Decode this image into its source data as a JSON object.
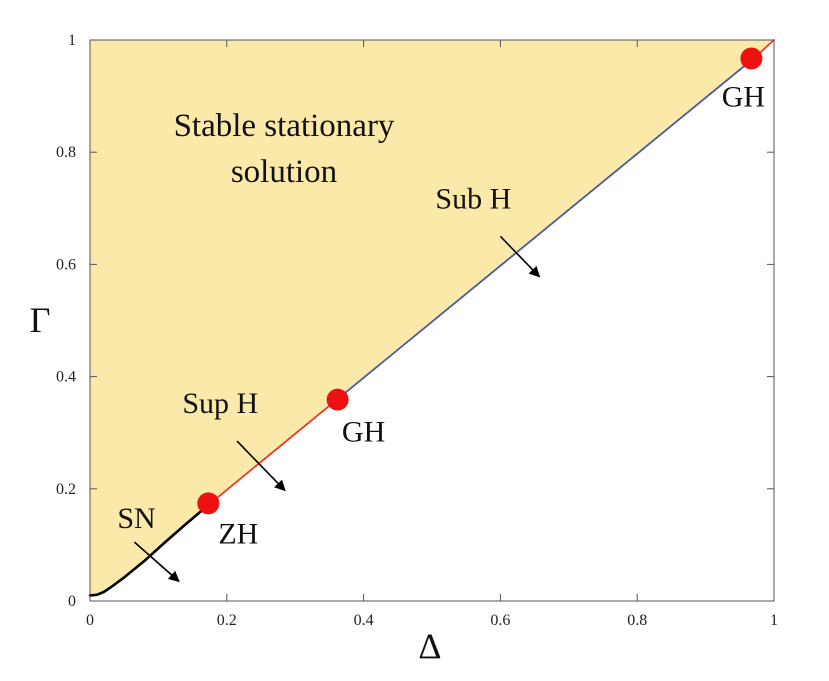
{
  "chart_data": {
    "type": "line",
    "xlabel": "Δ",
    "ylabel": "Γ",
    "xlim": [
      0,
      1
    ],
    "ylim": [
      0,
      1
    ],
    "xticks": [
      "0",
      "0.2",
      "0.4",
      "0.6",
      "0.8",
      "1"
    ],
    "yticks": [
      "0",
      "0.2",
      "0.4",
      "0.6",
      "0.8",
      "1"
    ],
    "grid": false,
    "region": {
      "label_lines": [
        "Stable stationary",
        "solution"
      ],
      "color": "#fbe9a9"
    },
    "series": [
      {
        "label": "SN",
        "color": "#000000",
        "points": [
          [
            0,
            0.01
          ],
          [
            0.01,
            0.011
          ],
          [
            0.02,
            0.016
          ],
          [
            0.03,
            0.024
          ],
          [
            0.05,
            0.042
          ],
          [
            0.08,
            0.072
          ],
          [
            0.11,
            0.105
          ],
          [
            0.14,
            0.137
          ],
          [
            0.175,
            0.173
          ]
        ]
      },
      {
        "label": "Sup H",
        "color": "#e83a2a",
        "points": [
          [
            0.175,
            0.173
          ],
          [
            0.36,
            0.358
          ]
        ]
      },
      {
        "label": "Sub H",
        "color": "#4a5aa8",
        "points": [
          [
            0.36,
            0.358
          ],
          [
            0.97,
            0.967
          ]
        ]
      },
      {
        "label": "",
        "color": "#e83a2a",
        "points": [
          [
            0.97,
            0.967
          ],
          [
            1.0,
            1.0
          ]
        ]
      }
    ],
    "markers": [
      {
        "label": "ZH",
        "x": 0.173,
        "y": 0.174,
        "color": "#ee1111"
      },
      {
        "label": "GH",
        "x": 0.362,
        "y": 0.359,
        "color": "#ee1111"
      },
      {
        "label": "GH",
        "x": 0.967,
        "y": 0.967,
        "color": "#ee1111"
      }
    ],
    "annotations": [
      {
        "text": "SN",
        "x": 0.04,
        "y": 0.13,
        "arrow_from": [
          0.065,
          0.105
        ],
        "arrow_to": [
          0.13,
          0.035
        ]
      },
      {
        "text": "Sup H",
        "x": 0.135,
        "y": 0.335,
        "arrow_from": [
          0.215,
          0.285
        ],
        "arrow_to": [
          0.285,
          0.197
        ]
      },
      {
        "text": "Sub H",
        "x": 0.505,
        "y": 0.7,
        "arrow_from": [
          0.6,
          0.65
        ],
        "arrow_to": [
          0.657,
          0.578
        ]
      }
    ]
  }
}
